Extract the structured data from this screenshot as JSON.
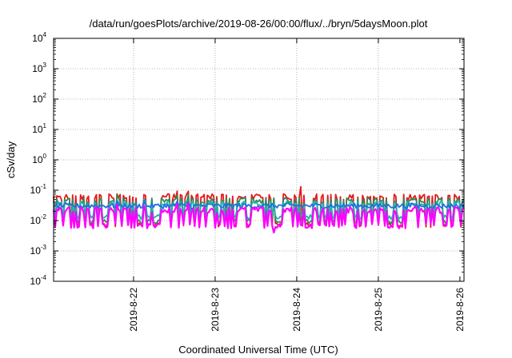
{
  "chart_data": {
    "type": "line",
    "title": "/data/run/goesPlots/archive/2019-08-26/00:00/flux/../bryn/5daysMoon.plot",
    "xlabel": "Coordinated Universal Time (UTC)",
    "ylabel": "cSv/day",
    "yscale": "log",
    "ylim": [
      0.0001,
      10000
    ],
    "xlim": [
      "2019-08-21",
      "2019-08-26"
    ],
    "x_ticks": [
      "2019-8-22",
      "2019-8-23",
      "2019-8-24",
      "2019-8-25",
      "2019-8-26"
    ],
    "y_ticks": [
      {
        "base": "10",
        "exp": "-4",
        "value": 0.0001
      },
      {
        "base": "10",
        "exp": "-3",
        "value": 0.001
      },
      {
        "base": "10",
        "exp": "-2",
        "value": 0.01
      },
      {
        "base": "10",
        "exp": "-1",
        "value": 0.1
      },
      {
        "base": "10",
        "exp": "0",
        "value": 1
      },
      {
        "base": "10",
        "exp": "1",
        "value": 10
      },
      {
        "base": "10",
        "exp": "2",
        "value": 100
      },
      {
        "base": "10",
        "exp": "3",
        "value": 1000
      },
      {
        "base": "10",
        "exp": "4",
        "value": 10000
      }
    ],
    "grid": true,
    "legend": "none",
    "series": [
      {
        "color": "#e41a1c",
        "baseline": 0.06,
        "dip": 0.007
      },
      {
        "color": "#2e8b57",
        "baseline": 0.045,
        "dip": 0.009
      },
      {
        "color": "#20b2aa",
        "baseline": 0.035,
        "dip": 0.013
      },
      {
        "color": "#1e6fe0",
        "baseline": 0.03,
        "dip": 0.03
      },
      {
        "color": "#ff00ff",
        "baseline": 0.022,
        "dip": 0.0065
      }
    ]
  }
}
